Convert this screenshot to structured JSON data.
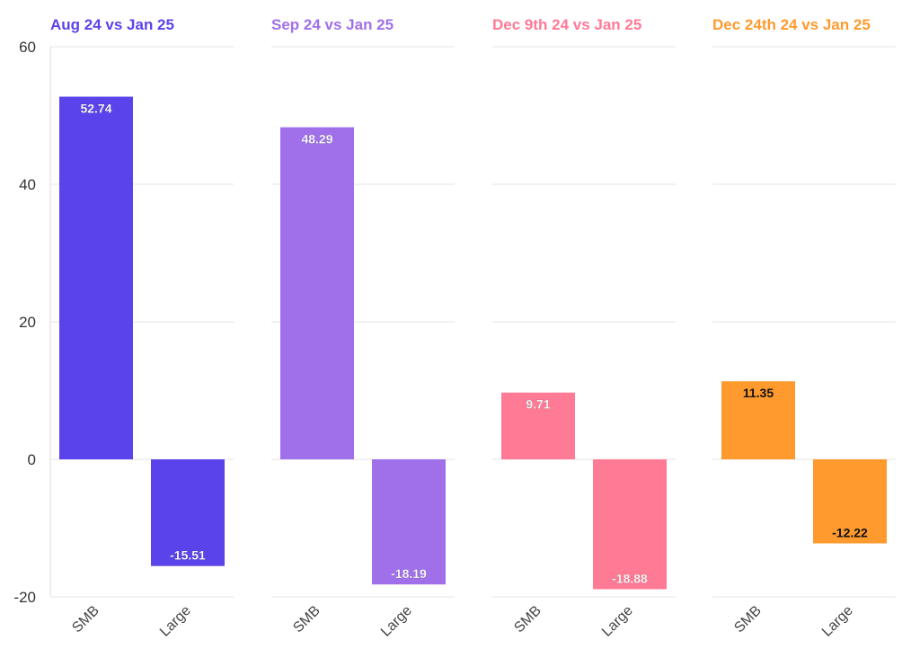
{
  "chart_data": {
    "type": "bar",
    "ylim": [
      -20,
      60
    ],
    "yticks": [
      "-20",
      "0",
      "20",
      "40",
      "60"
    ],
    "grid": true,
    "panels": [
      {
        "title": "Aug 24 vs Jan 25",
        "color": "#5B43EC",
        "label_color": "#ffffff",
        "categories": [
          "SMB",
          "Large"
        ],
        "values": [
          52.74,
          -15.51
        ],
        "labels": [
          "52.74",
          "-15.51"
        ]
      },
      {
        "title": "Sep 24 vs Jan 25",
        "color": "#A070EA",
        "label_color": "#ffffff",
        "categories": [
          "SMB",
          "Large"
        ],
        "values": [
          48.29,
          -18.19
        ],
        "labels": [
          "48.29",
          "-18.19"
        ]
      },
      {
        "title": "Dec 9th 24 vs Jan 25",
        "color": "#FF7A95",
        "label_color": "#ffffff",
        "categories": [
          "SMB",
          "Large"
        ],
        "values": [
          9.71,
          -18.88
        ],
        "labels": [
          "9.71",
          "-18.88"
        ]
      },
      {
        "title": "Dec 24th 24 vs Jan 25",
        "color": "#FF9A2E",
        "label_color": "#111111",
        "categories": [
          "SMB",
          "Large"
        ],
        "values": [
          11.35,
          -12.22
        ],
        "labels": [
          "11.35",
          "-12.22"
        ]
      }
    ]
  }
}
